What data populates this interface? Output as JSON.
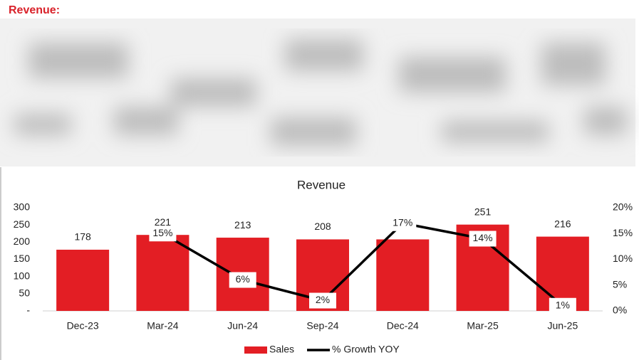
{
  "header": {
    "title": "Revenue:"
  },
  "chart_data": {
    "type": "bar",
    "title": "Revenue",
    "categories": [
      "Dec-23",
      "Mar-24",
      "Jun-24",
      "Sep-24",
      "Dec-24",
      "Mar-25",
      "Jun-25"
    ],
    "series": [
      {
        "name": "Sales",
        "type": "bar",
        "color": "#e31e24",
        "values": [
          178,
          221,
          213,
          208,
          208,
          251,
          216
        ]
      },
      {
        "name": "% Growth YOY",
        "type": "line",
        "axis": "y2",
        "color": "#000000",
        "values": [
          null,
          15,
          6,
          2,
          17,
          14,
          1
        ],
        "value_labels": [
          null,
          "15%",
          "6%",
          "2%",
          "17%",
          "14%",
          "1%"
        ]
      }
    ],
    "ylim": [
      0,
      300
    ],
    "yticks": [
      {
        "value": 0,
        "label": "-"
      },
      50,
      100,
      150,
      200,
      250,
      300
    ],
    "y2lim": [
      0,
      20
    ],
    "y2ticks": [
      {
        "value": 0,
        "label": "0%"
      },
      {
        "value": 5,
        "label": "5%"
      },
      {
        "value": 10,
        "label": "10%"
      },
      {
        "value": 15,
        "label": "15%"
      },
      {
        "value": 20,
        "label": "20%"
      }
    ],
    "legend": "bottom"
  }
}
